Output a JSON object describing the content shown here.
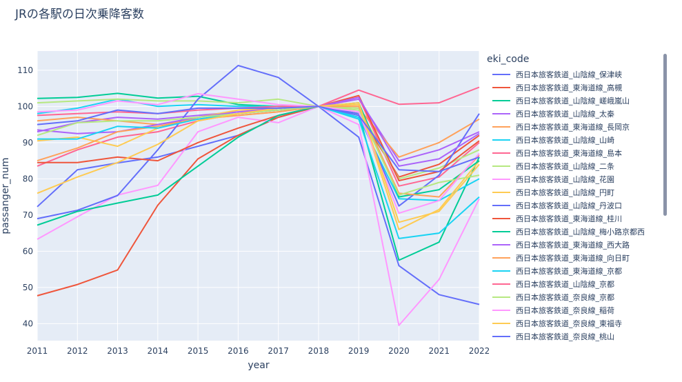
{
  "chart_data": {
    "type": "line",
    "title": "JRの各駅の日次乗降客数",
    "xlabel": "year",
    "ylabel": "passanger_num",
    "xlim": [
      2011,
      2022
    ],
    "ylim": [
      35.3,
      115.3
    ],
    "x_ticks": [
      2011,
      2012,
      2013,
      2014,
      2015,
      2016,
      2017,
      2018,
      2019,
      2020,
      2021,
      2022
    ],
    "y_ticks": [
      40,
      50,
      60,
      70,
      80,
      90,
      100,
      110
    ],
    "grid": true,
    "legend_title": "eki_code",
    "legend_position": "right",
    "x": [
      2011,
      2012,
      2013,
      2014,
      2015,
      2016,
      2017,
      2018,
      2019,
      2020,
      2021,
      2022
    ],
    "series": [
      {
        "name": "西日本旅客鉄道_山陰線_保津峡",
        "color": "#636efa",
        "values": [
          72.3,
          82.5,
          84.4,
          86.0,
          89.0,
          92.0,
          97.0,
          100,
          91.5,
          56.0,
          48.0,
          45.3
        ]
      },
      {
        "name": "西日本旅客鉄道_東海道線_高槻",
        "color": "#EF553B",
        "values": [
          47.7,
          50.8,
          54.8,
          72.7,
          85.5,
          92.0,
          97.0,
          100,
          98.0,
          80.5,
          84.0,
          92.0
        ]
      },
      {
        "name": "西日本旅客鉄道_山陰線_嵯峨嵐山",
        "color": "#00cc96",
        "values": [
          102.2,
          102.5,
          103.6,
          102.3,
          102.8,
          100.5,
          100.0,
          100,
          98.0,
          57.5,
          62.5,
          86.0
        ]
      },
      {
        "name": "西日本旅客鉄道_山陰線_太秦",
        "color": "#ab63fa",
        "values": [
          93.0,
          95.5,
          97.0,
          96.5,
          97.5,
          98.5,
          99.0,
          100,
          102.0,
          85.0,
          88.0,
          93.0
        ]
      },
      {
        "name": "西日本旅客鉄道_東海道線_長岡京",
        "color": "#FFA15A",
        "values": [
          96.0,
          97.0,
          96.0,
          95.0,
          96.5,
          97.5,
          98.5,
          100,
          99.5,
          86.0,
          90.0,
          96.5
        ]
      },
      {
        "name": "西日本旅客鉄道_山陰線_山崎",
        "color": "#19d3f3",
        "values": [
          98.0,
          99.5,
          102.0,
          100.0,
          100.5,
          100.0,
          100.0,
          100,
          97.0,
          74.5,
          74.0,
          80.0
        ]
      },
      {
        "name": "西日本旅客鉄道_東海道線_島本",
        "color": "#FF6692",
        "values": [
          83.5,
          88.0,
          91.5,
          93.0,
          96.0,
          98.0,
          99.0,
          100,
          102.5,
          78.0,
          80.5,
          90.0
        ]
      },
      {
        "name": "西日本旅客鉄道_山陰線_二条",
        "color": "#B6E880",
        "values": [
          101.0,
          101.5,
          102.0,
          101.5,
          101.5,
          101.0,
          102.0,
          100,
          99.5,
          80.0,
          83.0,
          88.0
        ]
      },
      {
        "name": "西日本旅客鉄道_山陰線_花園",
        "color": "#FF97FF",
        "values": [
          63.3,
          69.5,
          75.5,
          78.2,
          93.0,
          97.0,
          95.5,
          100,
          95.0,
          39.5,
          52.2,
          74.5
        ]
      },
      {
        "name": "西日本旅客鉄道_山陰線_円町",
        "color": "#FECB52",
        "values": [
          90.5,
          91.5,
          89.0,
          94.0,
          97.0,
          99.0,
          99.5,
          100,
          100.5,
          66.0,
          71.5,
          85.0
        ]
      },
      {
        "name": "西日本旅客鉄道_山陰線_丹波口",
        "color": "#636efa",
        "values": [
          69.0,
          71.3,
          75.4,
          88.0,
          102.0,
          111.3,
          108.0,
          100,
          98.0,
          72.5,
          81.0,
          98.0
        ]
      },
      {
        "name": "西日本旅客鉄道_東海道線_桂川",
        "color": "#EF553B",
        "values": [
          84.5,
          84.5,
          86.0,
          85.0,
          90.0,
          94.0,
          97.5,
          100,
          103.0,
          79.5,
          82.0,
          90.5
        ]
      },
      {
        "name": "西日本旅客鉄道_山陰線_梅小路京都西",
        "color": "#00cc96",
        "values": [
          67.2,
          71.0,
          73.3,
          75.5,
          83.5,
          91.5,
          97.5,
          100,
          101.0,
          75.0,
          77.0,
          85.0
        ]
      },
      {
        "name": "西日本旅客鉄道_東海道線_西大路",
        "color": "#ab63fa",
        "values": [
          93.5,
          92.5,
          93.0,
          95.0,
          97.0,
          98.5,
          99.5,
          100,
          102.5,
          83.5,
          85.5,
          92.5
        ]
      },
      {
        "name": "西日本旅客鉄道_東海道線_向日町",
        "color": "#FFA15A",
        "values": [
          85.0,
          88.5,
          93.0,
          94.5,
          96.5,
          97.5,
          98.5,
          100,
          100.0,
          76.0,
          75.0,
          86.5
        ]
      },
      {
        "name": "西日本旅客鉄道_東海道線_京都",
        "color": "#19d3f3",
        "values": [
          91.0,
          91.0,
          94.5,
          94.0,
          96.5,
          98.0,
          99.0,
          100,
          96.5,
          63.5,
          65.0,
          75.0
        ]
      },
      {
        "name": "西日本旅客鉄道_山陰線_京都",
        "color": "#FF6692",
        "values": [
          97.5,
          98.0,
          98.5,
          98.0,
          99.0,
          99.5,
          100.0,
          100,
          104.5,
          100.6,
          101.0,
          105.3
        ]
      },
      {
        "name": "西日本旅客鉄道_奈良線_京都",
        "color": "#B6E880",
        "values": [
          92.0,
          95.5,
          96.0,
          96.0,
          97.0,
          98.0,
          99.0,
          100,
          99.0,
          75.5,
          79.0,
          81.0
        ]
      },
      {
        "name": "西日本旅客鉄道_奈良線_稲荷",
        "color": "#FF97FF",
        "values": [
          98.5,
          99.0,
          101.5,
          100.5,
          103.5,
          102.0,
          100.5,
          100,
          98.5,
          70.5,
          74.0,
          87.0
        ]
      },
      {
        "name": "西日本旅客鉄道_奈良線_東福寺",
        "color": "#FECB52",
        "values": [
          76.0,
          80.5,
          84.5,
          89.5,
          96.0,
          98.0,
          99.5,
          100,
          101.0,
          68.0,
          71.0,
          84.0
        ]
      },
      {
        "name": "西日本旅客鉄道_奈良線_桃山",
        "color": "#636efa",
        "values": [
          95.0,
          96.0,
          99.0,
          98.0,
          99.5,
          99.5,
          99.5,
          100,
          97.5,
          82.5,
          82.0,
          86.0
        ]
      }
    ]
  }
}
